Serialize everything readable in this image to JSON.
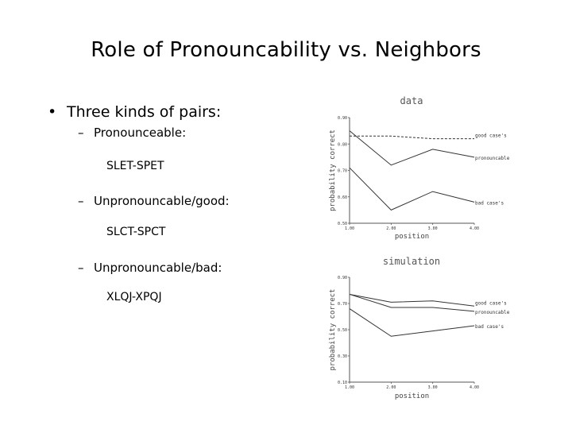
{
  "slide": {
    "title": "Role of Pronouncability vs. Neighbors",
    "bullet": "Three kinds of pairs:",
    "items": [
      {
        "label": "Pronounceable:",
        "example": "SLET-SPET"
      },
      {
        "label": "Unpronouncable/good:",
        "example": "SLCT-SPCT"
      },
      {
        "label": "Unpronouncable/bad:",
        "example": "XLQJ-XPQJ"
      }
    ]
  },
  "chart_data": [
    {
      "type": "line",
      "title": "data",
      "xlabel": "position",
      "ylabel": "probability correct",
      "x": [
        1,
        2,
        3,
        4
      ],
      "x_tick_labels": [
        "1.00",
        "2.00",
        "3.00",
        "4.00"
      ],
      "y_tick_labels": [
        "0.50",
        "0.60",
        "0.70",
        "0.80",
        "0.90"
      ],
      "ylim": [
        0.5,
        0.9
      ],
      "series": [
        {
          "name": "good case's",
          "values": [
            0.83,
            0.83,
            0.82,
            0.82
          ]
        },
        {
          "name": "pronouncable",
          "values": [
            0.85,
            0.72,
            0.78,
            0.75
          ]
        },
        {
          "name": "bad case's",
          "values": [
            0.71,
            0.55,
            0.62,
            0.58
          ]
        }
      ],
      "colors": {
        "line": "#333333",
        "axis": "#555555"
      }
    },
    {
      "type": "line",
      "title": "simulation",
      "xlabel": "position",
      "ylabel": "probability correct",
      "x": [
        1,
        2,
        3,
        4
      ],
      "x_tick_labels": [
        "1.00",
        "2.00",
        "3.00",
        "4.00"
      ],
      "y_tick_labels": [
        "0.10",
        "0.30",
        "0.50",
        "0.70",
        "0.90"
      ],
      "ylim": [
        0.1,
        0.9
      ],
      "series": [
        {
          "name": "good case's",
          "values": [
            0.77,
            0.71,
            0.72,
            0.68
          ]
        },
        {
          "name": "pronouncable",
          "values": [
            0.77,
            0.67,
            0.67,
            0.64
          ]
        },
        {
          "name": "bad case's",
          "values": [
            0.66,
            0.45,
            0.49,
            0.53
          ]
        }
      ],
      "colors": {
        "line": "#333333",
        "axis": "#555555"
      }
    }
  ]
}
